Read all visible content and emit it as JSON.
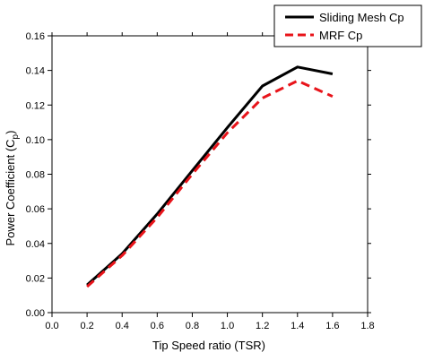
{
  "chart_data": {
    "type": "line",
    "title": "",
    "xlabel": "Tip Speed ratio (TSR)",
    "ylabel_main": "Power Coefficient (C",
    "ylabel_sub": "p",
    "ylabel_close": ")",
    "xlim": [
      0.0,
      1.8
    ],
    "ylim": [
      0.0,
      0.16
    ],
    "xticks": [
      0.0,
      0.2,
      0.4,
      0.6,
      0.8,
      1.0,
      1.2,
      1.4,
      1.6,
      1.8
    ],
    "xtick_labels": [
      "0.0",
      "0.2",
      "0.4",
      "0.6",
      "0.8",
      "1.0",
      "1.2",
      "1.4",
      "1.6",
      "1.8"
    ],
    "yticks": [
      0.0,
      0.02,
      0.04,
      0.06,
      0.08,
      0.1,
      0.12,
      0.14,
      0.16
    ],
    "ytick_labels": [
      "0.00",
      "0.02",
      "0.04",
      "0.06",
      "0.08",
      "0.10",
      "0.12",
      "0.14",
      "0.16"
    ],
    "grid": false,
    "legend_position": "top-right",
    "series": [
      {
        "name": "Sliding Mesh Cp",
        "color": "#000000",
        "style": "solid",
        "x": [
          0.2,
          0.4,
          0.6,
          0.8,
          1.0,
          1.2,
          1.4,
          1.6
        ],
        "y": [
          0.016,
          0.034,
          0.057,
          0.082,
          0.107,
          0.131,
          0.142,
          0.138
        ]
      },
      {
        "name": "MRF Cp",
        "color": "#e8141a",
        "style": "dashed",
        "x": [
          0.2,
          0.4,
          0.6,
          0.8,
          1.0,
          1.2,
          1.4,
          1.6
        ],
        "y": [
          0.015,
          0.033,
          0.055,
          0.08,
          0.104,
          0.124,
          0.134,
          0.125
        ]
      }
    ]
  }
}
